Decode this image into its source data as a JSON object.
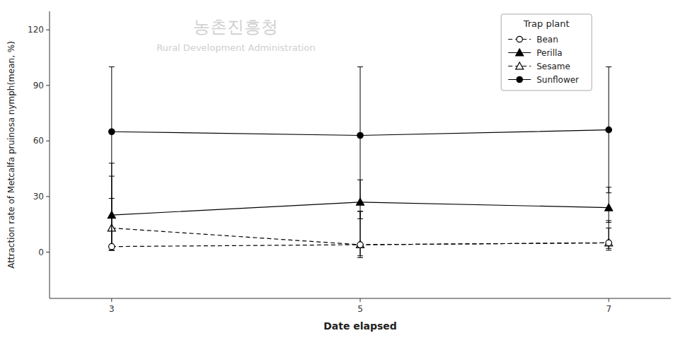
{
  "chart_data": {
    "type": "line",
    "x_label": "Date elapsed",
    "y_label": "Attraction rate of Metcalfa pruinosa nymph(mean, %)",
    "x": [
      3,
      5,
      7
    ],
    "xlim": [
      2.5,
      7.5
    ],
    "xticks": [
      3,
      5,
      7
    ],
    "ylim": [
      -25,
      130
    ],
    "yticks": [
      0,
      30,
      60,
      90,
      120
    ],
    "grid": false,
    "legend": "upper-right",
    "legend_title": "Trap plant",
    "annotations": [
      {
        "text": "농촌진흥청"
      },
      {
        "text": "Rural Development Administration"
      }
    ],
    "series": [
      {
        "name": "Bean",
        "color": "#000000",
        "marker": "circle-open",
        "line_style": "dashed",
        "values": [
          3,
          4,
          5
        ],
        "error_lo": [
          2,
          7,
          3
        ],
        "error_hi": [
          26,
          18,
          8
        ]
      },
      {
        "name": "Perilla",
        "color": "#000000",
        "marker": "triangle",
        "line_style": "solid",
        "values": [
          20,
          27,
          24
        ],
        "error_lo": [
          19,
          9,
          8
        ],
        "error_hi": [
          28,
          12,
          11
        ]
      },
      {
        "name": "Sesame",
        "color": "#000000",
        "marker": "triangle-open",
        "line_style": "dashed",
        "values": [
          13,
          4,
          5
        ],
        "error_lo": [
          11,
          6,
          4
        ],
        "error_hi": [
          28,
          18,
          12
        ]
      },
      {
        "name": "Sunflower",
        "color": "#000000",
        "marker": "circle",
        "line_style": "solid",
        "values": [
          65,
          63,
          66
        ],
        "error_lo": [
          64,
          36,
          34
        ],
        "error_hi": [
          35,
          37,
          34
        ]
      }
    ]
  }
}
